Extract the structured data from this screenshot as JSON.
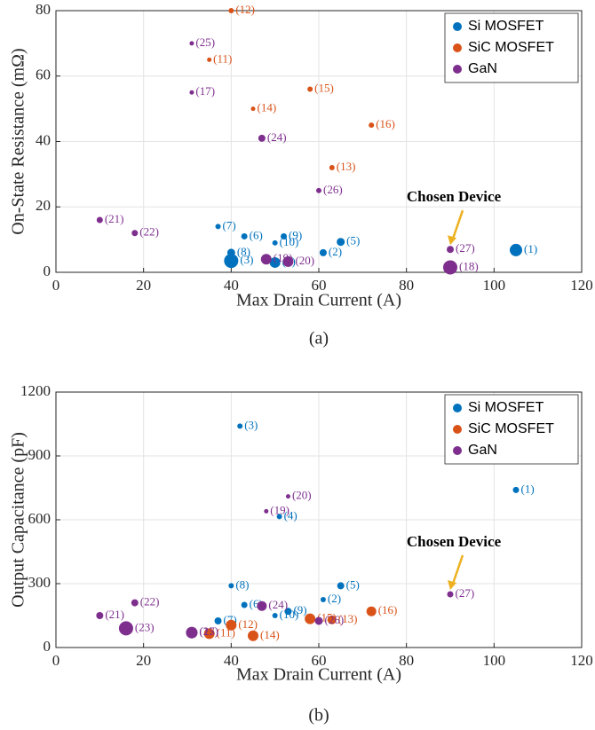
{
  "chart_data": [
    {
      "type": "scatter",
      "caption": "(a)",
      "xlabel": "Max Drain Current (A)",
      "ylabel": "On-State Resistance (mΩ)",
      "xlim": [
        0,
        120
      ],
      "ylim": [
        0,
        80
      ],
      "xticks": [
        0,
        20,
        40,
        60,
        80,
        100,
        120
      ],
      "yticks": [
        0,
        20,
        40,
        60,
        80
      ],
      "grid": true,
      "legend": "upper right",
      "annotation": "Chosen Device",
      "series": [
        {
          "name": "Si MOSFET",
          "color": "#0072BD",
          "x": [
            105,
            61,
            40,
            50,
            65,
            43,
            37,
            40,
            52,
            50
          ],
          "values": [
            6.8,
            6,
            3.5,
            3,
            9.3,
            11,
            14,
            6,
            11,
            9
          ],
          "sizes": [
            7,
            4,
            8,
            6,
            4.5,
            3.5,
            3,
            4.5,
            3.5,
            3
          ],
          "point_labels": [
            "(1)",
            "(2)",
            "(3)",
            "(4)",
            "(5)",
            "(6)",
            "(7)",
            "(8)",
            "(9)",
            "(10)"
          ]
        },
        {
          "name": "SiC MOSFET",
          "color": "#D95319",
          "x": [
            35,
            40,
            63,
            45,
            58,
            72
          ],
          "values": [
            65,
            80,
            32,
            50,
            56,
            45
          ],
          "sizes": [
            2.5,
            3,
            3,
            2.5,
            3,
            3
          ],
          "point_labels": [
            "(11)",
            "(12)",
            "(13)",
            "(14)",
            "(15)",
            "(16)"
          ]
        },
        {
          "name": "GaN",
          "color": "#7E2F8E",
          "x": [
            31,
            90,
            48,
            53,
            10,
            18,
            47,
            31,
            60,
            90
          ],
          "values": [
            55,
            1.5,
            4,
            3.3,
            16,
            12,
            41,
            70,
            25,
            7
          ],
          "sizes": [
            2.5,
            8,
            6,
            6,
            3.5,
            3.5,
            4,
            2.5,
            3,
            4
          ],
          "point_labels": [
            "(17)",
            "(18)",
            "(19)",
            "(20)",
            "(21)",
            "(22)",
            "(24)",
            "(25)",
            "(26)",
            "(27)"
          ]
        }
      ]
    },
    {
      "type": "scatter",
      "caption": "(b)",
      "xlabel": "Max Drain Current (A)",
      "ylabel": "Output Capacitance (pF)",
      "xlim": [
        0,
        120
      ],
      "ylim": [
        0,
        1200
      ],
      "xticks": [
        0,
        20,
        40,
        60,
        80,
        100,
        120
      ],
      "yticks": [
        0,
        300,
        600,
        900,
        1200
      ],
      "grid": true,
      "legend": "upper right",
      "annotation": "Chosen Device",
      "series": [
        {
          "name": "Si MOSFET",
          "color": "#0072BD",
          "x": [
            105,
            61,
            42,
            51,
            65,
            43,
            37,
            40,
            53,
            50
          ],
          "values": [
            740,
            225,
            1040,
            615,
            290,
            200,
            125,
            290,
            170,
            150
          ],
          "sizes": [
            3.5,
            3,
            3,
            3,
            4,
            3.5,
            4,
            3,
            4,
            3
          ],
          "point_labels": [
            "(1)",
            "(2)",
            "(3)",
            "(4)",
            "(5)",
            "(6)",
            "(7)",
            "(8)",
            "(9)",
            "(10)"
          ]
        },
        {
          "name": "SiC MOSFET",
          "color": "#D95319",
          "x": [
            35,
            40,
            63,
            45,
            58,
            72
          ],
          "values": [
            65,
            105,
            130,
            55,
            135,
            170
          ],
          "sizes": [
            6,
            6,
            5,
            6,
            6,
            5.5
          ],
          "point_labels": [
            "(11)",
            "(12)",
            "(13)",
            "(14)",
            "(15)",
            "(16)"
          ]
        },
        {
          "name": "GaN",
          "color": "#7E2F8E",
          "x": [
            31,
            48,
            53,
            10,
            18,
            16,
            47,
            31,
            60,
            90
          ],
          "values": [
            70,
            640,
            710,
            150,
            210,
            90,
            195,
            70,
            125,
            250
          ],
          "sizes": [
            6.5,
            2.5,
            2.5,
            4,
            4,
            8,
            5.5,
            6.5,
            4.5,
            3.5
          ],
          "point_labels": [
            "(17)",
            "(19)",
            "(20)",
            "(21)",
            "(22)",
            "(23)",
            "(24)",
            "(25)",
            "(26)",
            "(27)"
          ]
        }
      ]
    }
  ]
}
